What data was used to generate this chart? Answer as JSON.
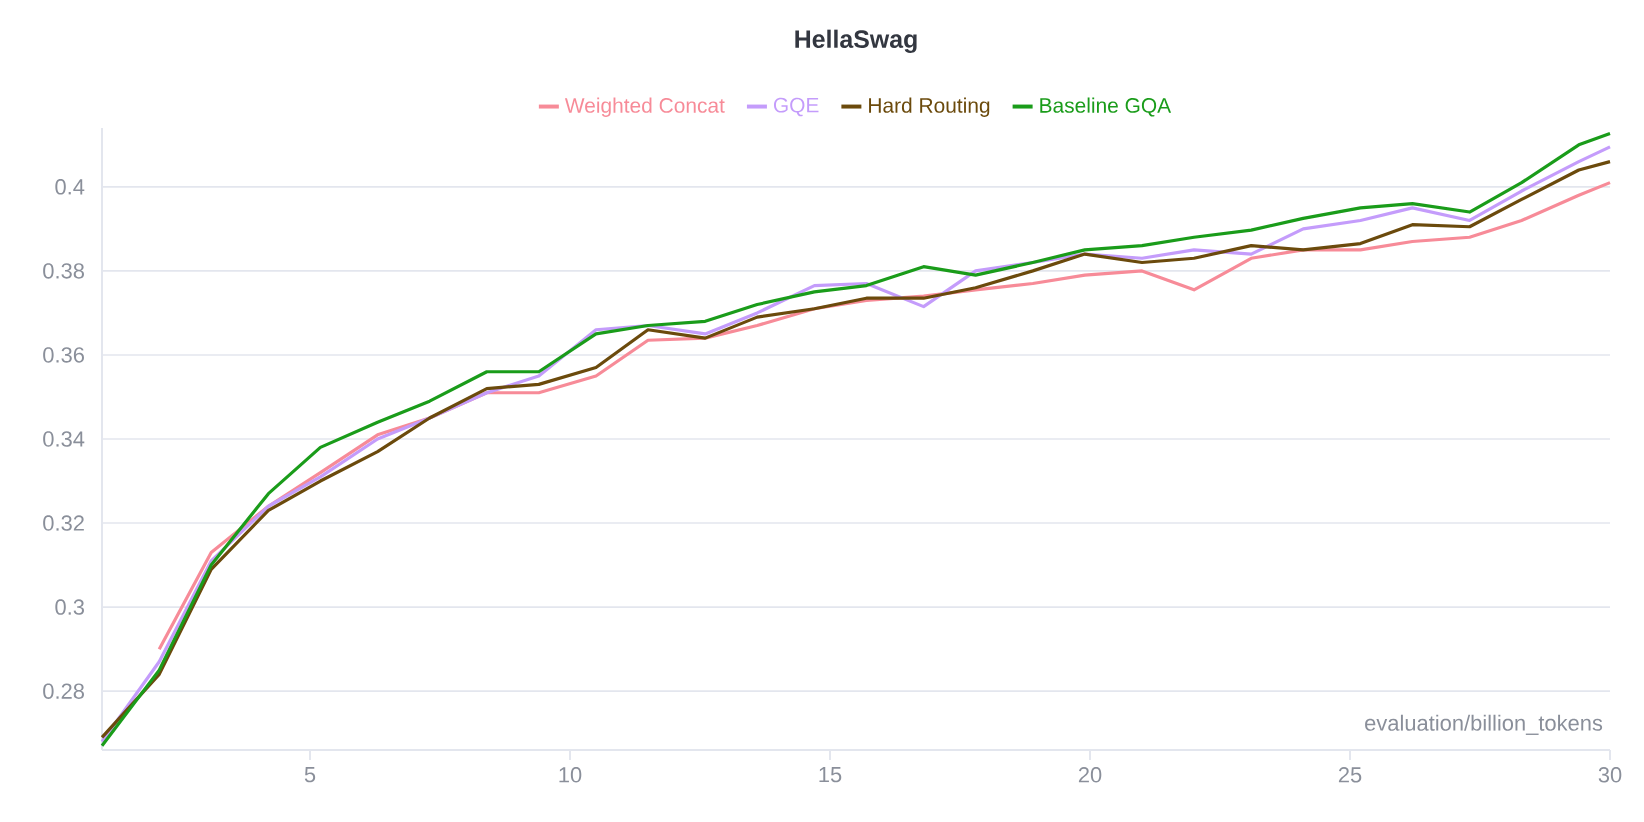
{
  "chart_data": {
    "type": "line",
    "title": "HellaSwag",
    "xlabel": "evaluation/billion_tokens",
    "x": [
      1.0,
      2.1,
      3.1,
      4.2,
      5.2,
      6.3,
      7.3,
      8.4,
      9.4,
      10.5,
      11.5,
      12.6,
      13.6,
      14.7,
      15.7,
      16.8,
      17.8,
      18.9,
      19.9,
      21,
      22,
      23.1,
      24.1,
      25.2,
      26.2,
      27.3,
      28.3,
      29.4,
      30
    ],
    "series": [
      {
        "name": "Weighted Concat",
        "color": "#f78b98",
        "values": [
          null,
          0.29,
          0.313,
          0.324,
          0.332,
          0.341,
          0.345,
          0.351,
          0.351,
          0.355,
          0.3635,
          0.364,
          0.367,
          0.371,
          0.373,
          0.374,
          0.3755,
          0.377,
          0.379,
          0.38,
          0.3755,
          0.383,
          0.385,
          0.385,
          0.387,
          0.388,
          0.392,
          0.398,
          0.401
        ]
      },
      {
        "name": "GQE",
        "color": "#c49cfb",
        "values": [
          0.268,
          0.287,
          0.311,
          0.324,
          0.331,
          0.34,
          0.345,
          0.351,
          0.355,
          0.366,
          0.367,
          0.365,
          0.37,
          0.3765,
          0.377,
          0.3715,
          0.38,
          0.382,
          0.384,
          0.383,
          0.385,
          0.384,
          0.39,
          0.392,
          0.395,
          0.392,
          0.399,
          0.406,
          0.4095
        ]
      },
      {
        "name": "Hard Routing",
        "color": "#6b4a0c",
        "values": [
          0.269,
          0.284,
          0.309,
          0.323,
          0.33,
          0.337,
          0.345,
          0.352,
          0.353,
          0.357,
          0.366,
          0.364,
          0.369,
          0.371,
          0.3735,
          0.3735,
          0.376,
          0.38,
          0.384,
          0.382,
          0.383,
          0.386,
          0.385,
          0.3865,
          0.391,
          0.3905,
          0.397,
          0.404,
          0.406
        ]
      },
      {
        "name": "Baseline GQA",
        "color": "#1a9c1a",
        "values": [
          0.267,
          0.285,
          0.31,
          0.327,
          0.338,
          0.344,
          0.349,
          0.356,
          0.356,
          0.365,
          0.367,
          0.368,
          0.372,
          0.375,
          0.3765,
          0.381,
          0.379,
          0.382,
          0.385,
          0.386,
          0.388,
          0.3897,
          0.3925,
          0.395,
          0.396,
          0.394,
          0.401,
          0.41,
          0.4127
        ]
      }
    ],
    "xlim": [
      1,
      30
    ],
    "ylim": [
      0.266,
      0.414
    ],
    "xticks": [
      5,
      10,
      15,
      20,
      25,
      30
    ],
    "yticks": [
      0.28,
      0.3,
      0.32,
      0.34,
      0.36,
      0.38,
      0.4
    ],
    "grid": "y",
    "legend": "top",
    "marker": "none",
    "line_style": "solid"
  }
}
